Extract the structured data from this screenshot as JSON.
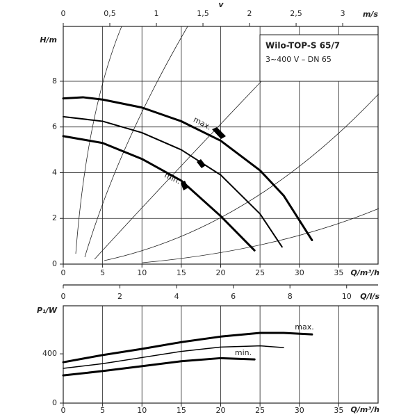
{
  "chart_data": [
    {
      "type": "line",
      "model": "Wilo-TOP-S 65/7",
      "spec": "3~400 V – DN 65",
      "xlabel": "Q/m³/h",
      "ylabel": "H/m",
      "x2label": "m/s",
      "x2symbol": "v",
      "xlim": [
        0,
        40
      ],
      "xticks": [
        0,
        5,
        10,
        15,
        20,
        25,
        30,
        35
      ],
      "ylim": [
        0,
        10.4
      ],
      "yticks": [
        0,
        2,
        4,
        6,
        8
      ],
      "x2lim": [
        0,
        3.38
      ],
      "x2ticks": [
        0,
        {
          "value": 0.5,
          "label": "0,5"
        },
        1,
        {
          "value": 1.5,
          "label": "1,5"
        },
        2,
        {
          "value": 2.5,
          "label": "2,5"
        },
        3
      ],
      "grid": true,
      "annotations": [
        "max.",
        "min."
      ],
      "series": [
        {
          "color": "#000000",
          "width": 3,
          "x": [
            0,
            2.5,
            5,
            10,
            15,
            20,
            25,
            28,
            31.6
          ],
          "values": [
            7.25,
            7.3,
            7.2,
            6.85,
            6.25,
            5.4,
            4.1,
            3.0,
            1.05
          ]
        },
        {
          "color": "#000000",
          "width": 2,
          "x": [
            0,
            5,
            10,
            15,
            20,
            25,
            27.8
          ],
          "values": [
            6.45,
            6.25,
            5.75,
            5.0,
            3.9,
            2.2,
            0.75
          ]
        },
        {
          "color": "#000000",
          "width": 3,
          "x": [
            0,
            5,
            10,
            15,
            20,
            24.3
          ],
          "values": [
            5.6,
            5.3,
            4.6,
            3.65,
            2.1,
            0.6
          ]
        }
      ]
    },
    {
      "type": "line",
      "xlabel": "Q/m³/h",
      "ylabel": "P₁/W",
      "x2label": "Q/l/s",
      "xlim": [
        0,
        40
      ],
      "xticks": [
        0,
        5,
        10,
        15,
        20,
        25,
        30,
        35
      ],
      "ylim": [
        0,
        790
      ],
      "yticks": [
        0,
        400
      ],
      "x2lim": [
        0,
        11.11
      ],
      "x2ticks": [
        0,
        2,
        4,
        6,
        8,
        10
      ],
      "grid": true,
      "annotations": [
        "max.",
        "min."
      ],
      "series": [
        {
          "color": "#000000",
          "width": 3,
          "x": [
            0,
            5,
            10,
            15,
            20,
            25,
            28,
            31.6
          ],
          "values": [
            332,
            390,
            440,
            495,
            540,
            570,
            570,
            558
          ]
        },
        {
          "color": "#000000",
          "width": 1.5,
          "x": [
            0,
            5,
            10,
            15,
            20,
            25,
            28
          ],
          "values": [
            282,
            320,
            370,
            420,
            455,
            465,
            451
          ]
        },
        {
          "color": "#000000",
          "width": 3,
          "x": [
            0,
            5,
            10,
            15,
            20,
            24.3
          ],
          "values": [
            225,
            260,
            300,
            340,
            365,
            355
          ]
        }
      ]
    }
  ]
}
